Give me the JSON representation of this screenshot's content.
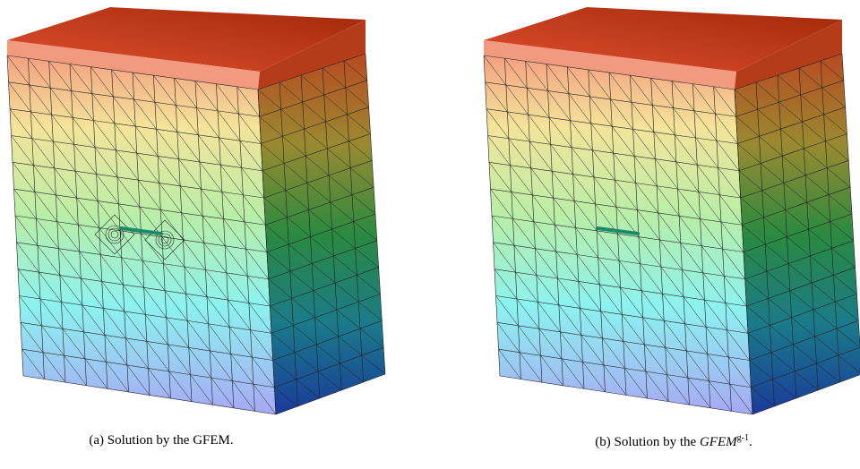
{
  "figure": {
    "panels": [
      {
        "caption": "(a) Solution by the GFEM."
      },
      {
        "caption_parts": [
          "(b) Solution by the ",
          "GFEM",
          "g-1",
          "."
        ]
      }
    ]
  }
}
